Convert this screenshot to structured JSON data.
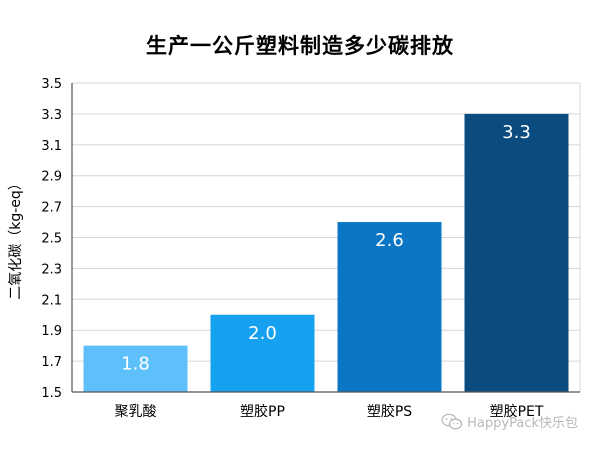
{
  "chart_data": {
    "type": "bar",
    "title": "生产一公斤塑料制造多少碳排放",
    "ylabel": "二氧化碳（kg-eq）",
    "xlabel": "",
    "categories": [
      "聚乳酸",
      "塑胶PP",
      "塑胶PS",
      "塑胶PET"
    ],
    "values": [
      1.8,
      2.0,
      2.6,
      3.3
    ],
    "value_labels": [
      "1.8",
      "2.0",
      "2.6",
      "3.3"
    ],
    "ylim": [
      1.5,
      3.5
    ],
    "yticks": [
      1.5,
      1.7,
      1.9,
      2.1,
      2.3,
      2.5,
      2.7,
      2.9,
      3.1,
      3.3,
      3.5
    ],
    "ytick_labels": [
      "1.5",
      "1.7",
      "1.9",
      "2.1",
      "2.3",
      "2.5",
      "2.7",
      "2.9",
      "3.1",
      "3.3",
      "3.5"
    ],
    "grid": true,
    "legend": "none",
    "bar_colors": [
      "#5ec0fb",
      "#15a0f0",
      "#0b76c4",
      "#0a4c80"
    ]
  },
  "watermark": {
    "text": "HappyPack快乐包",
    "icon": "wechat-icon"
  }
}
